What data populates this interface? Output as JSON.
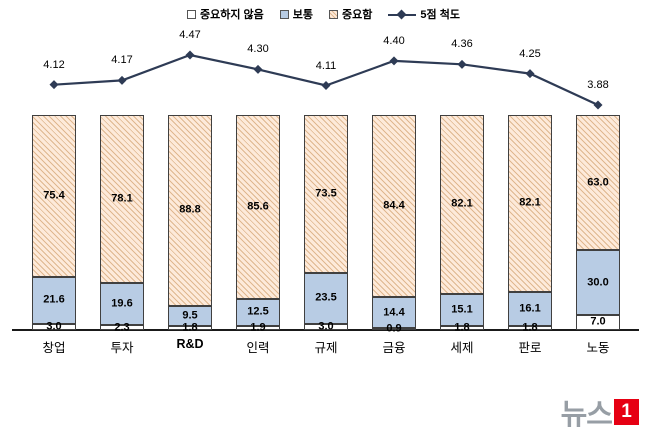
{
  "legend": {
    "items": [
      {
        "label": "중요하지 않음",
        "swatch": "white-box"
      },
      {
        "label": "보통",
        "swatch": "blue-box"
      },
      {
        "label": "중요함",
        "swatch": "hatched-box"
      },
      {
        "label": "5점 척도",
        "swatch": "line-marker"
      }
    ]
  },
  "chart_data": {
    "type": "bar",
    "subtype": "100%-stacked-column-with-line-overlay",
    "categories": [
      "창업",
      "투자",
      "R&D",
      "인력",
      "규제",
      "금융",
      "세제",
      "판로",
      "노동"
    ],
    "bold_categories": [
      "R&D"
    ],
    "series": [
      {
        "name": "중요하지 않음",
        "values": [
          3.0,
          2.3,
          1.8,
          1.9,
          3.0,
          0.9,
          1.8,
          1.8,
          7.0
        ]
      },
      {
        "name": "보통",
        "values": [
          21.6,
          19.6,
          9.5,
          12.5,
          23.5,
          14.4,
          15.1,
          16.1,
          30.0
        ]
      },
      {
        "name": "중요함",
        "values": [
          75.4,
          78.1,
          88.8,
          85.6,
          73.5,
          84.4,
          82.1,
          82.1,
          63.0
        ]
      }
    ],
    "line_series": {
      "name": "5점 척도",
      "values": [
        4.12,
        4.17,
        4.47,
        4.3,
        4.11,
        4.4,
        4.36,
        4.25,
        3.88
      ]
    },
    "title": "",
    "xlabel": "",
    "ylabel": "",
    "ylim": [
      0,
      100
    ],
    "grid": false,
    "legend_position": "top"
  },
  "colors": {
    "bar_not_important": "#ffffff",
    "bar_normal": "#b8cce4",
    "bar_important_bg": "#fdeada",
    "bar_important_hatch": "#dfb78f",
    "bar_border": "#404040",
    "line": "#2e3b55",
    "axis": "#1a1a1a",
    "watermark_gray": "#979ea5",
    "watermark_red": "#e60013"
  },
  "watermark": {
    "text": "뉴스",
    "badge": "1"
  }
}
